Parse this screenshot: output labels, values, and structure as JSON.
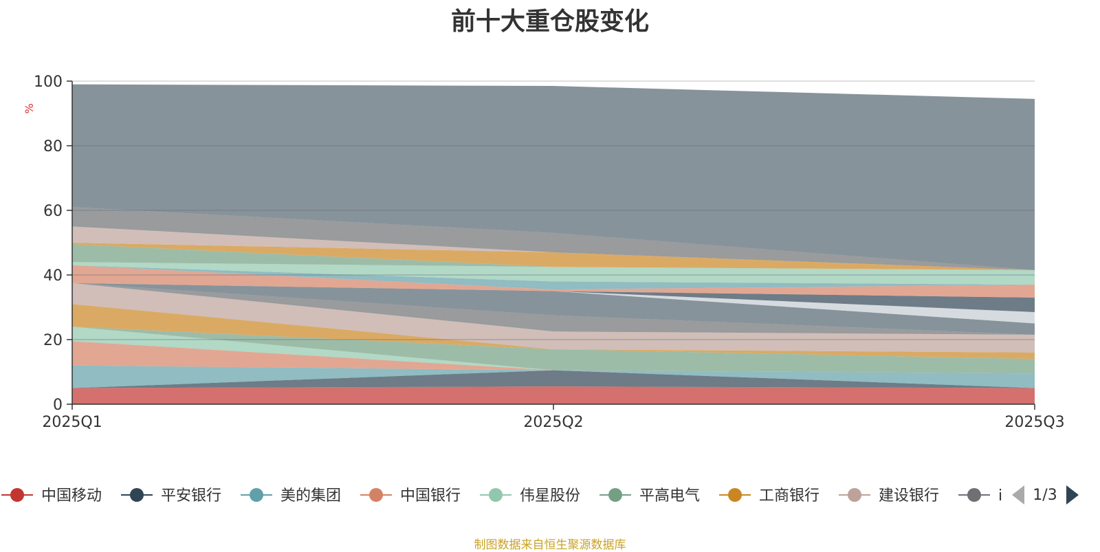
{
  "chart_data": {
    "type": "area",
    "title": "前十大重仓股变化",
    "ylabel": "%",
    "x": [
      "2025Q1",
      "2025Q2",
      "2025Q3"
    ],
    "ylim": [
      0,
      100
    ],
    "yticks": [
      0,
      20,
      40,
      60,
      80,
      100
    ],
    "stacked": true,
    "grid": true,
    "series": [
      {
        "name": "中国移动",
        "color": "#c23531",
        "values": [
          5.0,
          5.5,
          5.0
        ]
      },
      {
        "name": "平安银行",
        "color": "#2f4554",
        "values": [
          0.0,
          5.0,
          0.0
        ]
      },
      {
        "name": "美的集团",
        "color": "#61a0a8",
        "values": [
          7.0,
          0.0,
          4.5
        ]
      },
      {
        "name": "中国银行",
        "color": "#d48265",
        "values": [
          7.5,
          0.0,
          0.0
        ]
      },
      {
        "name": "伟星股份",
        "color": "#91c7ae",
        "values": [
          4.5,
          0.0,
          0.0
        ]
      },
      {
        "name": "平高电气",
        "color": "#749f83",
        "values": [
          0.0,
          6.5,
          4.5
        ]
      },
      {
        "name": "工商银行",
        "color": "#ca8622",
        "values": [
          7.0,
          0.0,
          2.0
        ]
      },
      {
        "name": "建设银行",
        "color": "#bda29a",
        "values": [
          6.5,
          5.5,
          5.5
        ]
      },
      {
        "name": "",
        "color": "#6e7074",
        "values": [
          0.0,
          5.0,
          0.0
        ]
      },
      {
        "name": "",
        "color": "#546570",
        "values": [
          0.0,
          7.5,
          3.5
        ]
      },
      {
        "name": "",
        "color": "#c4ccd3",
        "values": [
          0.0,
          0.0,
          3.5
        ]
      },
      {
        "name": "",
        "color": "#2f4554",
        "values": [
          0.0,
          0.0,
          4.5
        ]
      },
      {
        "name": "",
        "color": "#d48265",
        "values": [
          5.5,
          0.5,
          4.0
        ]
      },
      {
        "name": "",
        "color": "#61a0a8",
        "values": [
          0.0,
          2.5,
          0.0
        ]
      },
      {
        "name": "",
        "color": "#91c7ae",
        "values": [
          1.0,
          4.5,
          4.5
        ]
      },
      {
        "name": "",
        "color": "#749f83",
        "values": [
          5.5,
          0.0,
          0.0
        ]
      },
      {
        "name": "",
        "color": "#ca8622",
        "values": [
          0.5,
          4.5,
          0.0
        ]
      },
      {
        "name": "",
        "color": "#bda29a",
        "values": [
          5.0,
          0.0,
          0.0
        ]
      },
      {
        "name": "",
        "color": "#6e7074",
        "values": [
          6.0,
          6.0,
          0.0
        ]
      },
      {
        "name": "",
        "color": "#546570",
        "values": [
          38.0,
          45.5,
          53.0
        ]
      }
    ]
  },
  "legend": {
    "items": [
      {
        "label": "中国移动",
        "color": "#c23531"
      },
      {
        "label": "平安银行",
        "color": "#2f4554"
      },
      {
        "label": "美的集团",
        "color": "#61a0a8"
      },
      {
        "label": "中国银行",
        "color": "#d48265"
      },
      {
        "label": "伟星股份",
        "color": "#91c7ae"
      },
      {
        "label": "平高电气",
        "color": "#749f83"
      },
      {
        "label": "工商银行",
        "color": "#ca8622"
      },
      {
        "label": "建设银行",
        "color": "#bda29a"
      },
      {
        "label": "i",
        "color": "#6e7074"
      }
    ],
    "page": "1/3",
    "prev_icon": "triangle-left-icon",
    "next_icon": "triangle-right-icon",
    "prev_color": "#aaaaaa",
    "next_color": "#2f4554"
  },
  "footer": {
    "source": "制图数据来自恒生聚源数据库"
  }
}
